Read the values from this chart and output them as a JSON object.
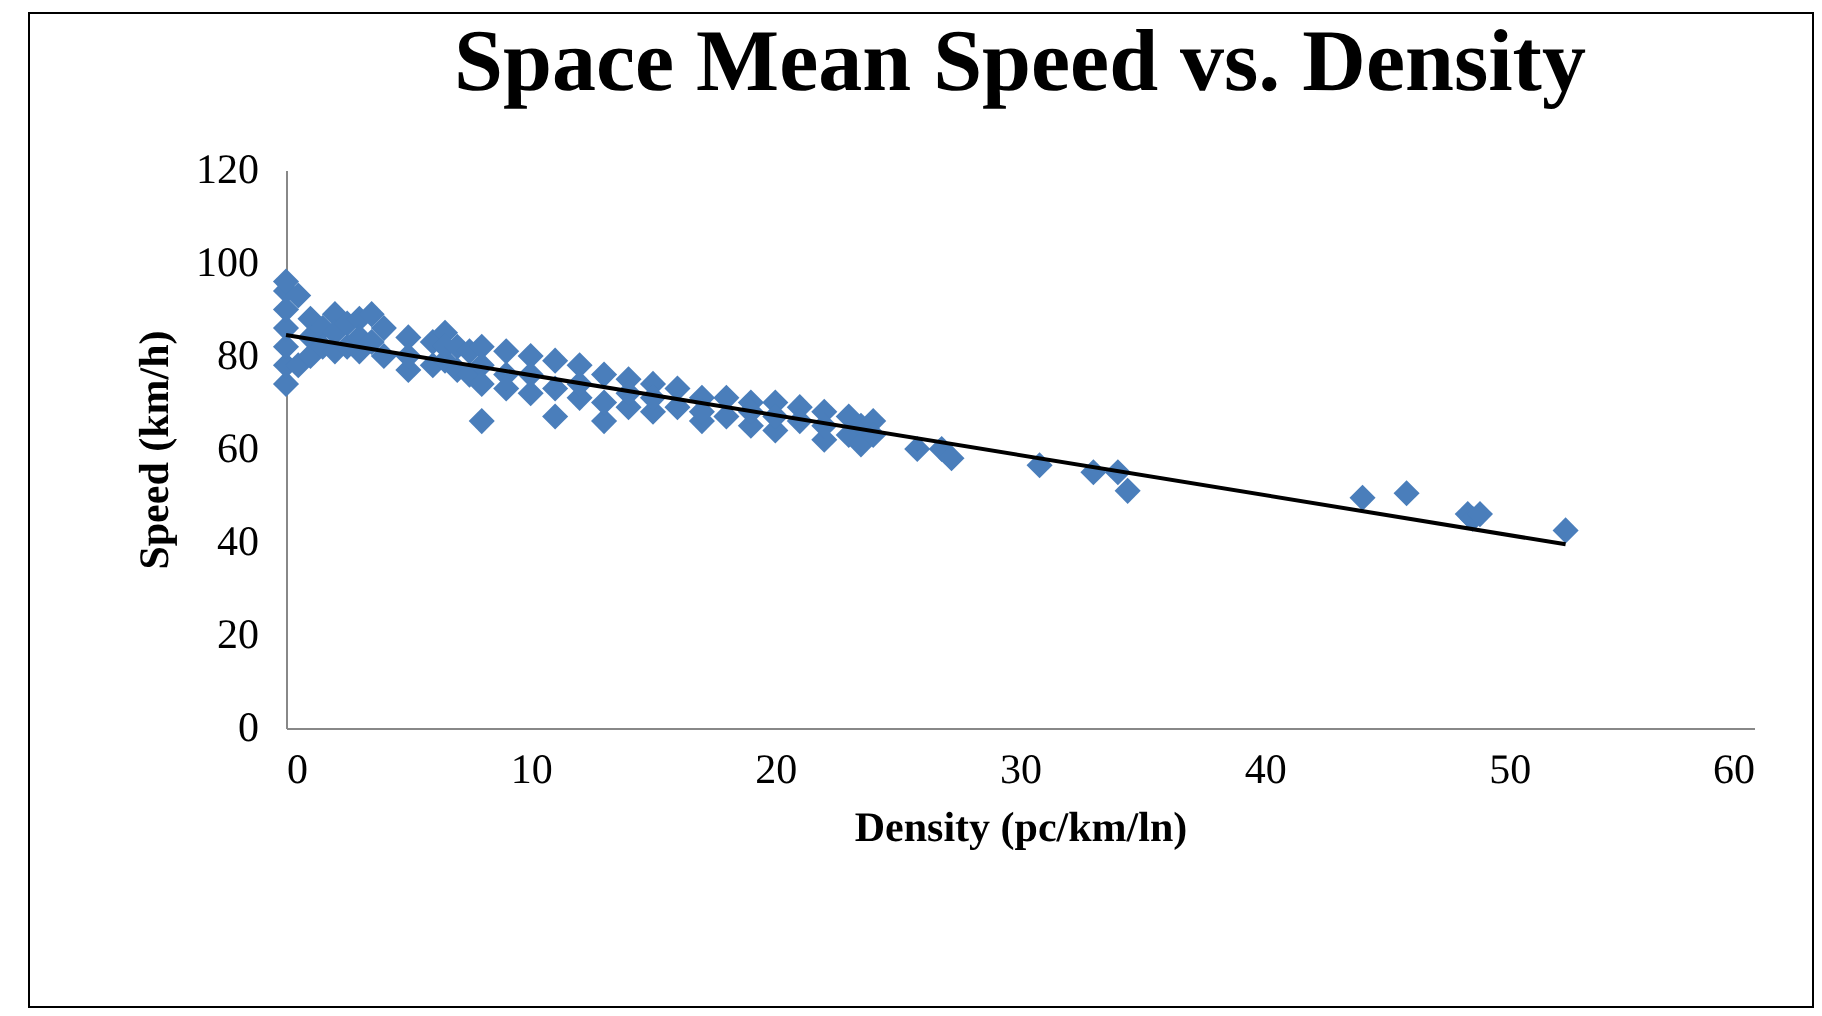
{
  "chart_data": {
    "type": "scatter",
    "title": "Space Mean Speed vs. Density",
    "xlabel": "Density (pc/km/ln)",
    "ylabel": "Speed (km/h)",
    "xlim": [
      0,
      60
    ],
    "ylim": [
      0,
      120
    ],
    "xticks": [
      0,
      10,
      20,
      30,
      40,
      50,
      60
    ],
    "yticks": [
      0,
      20,
      40,
      60,
      80,
      100,
      120
    ],
    "grid": false,
    "series": [
      {
        "marker": "diamond",
        "color": "#4a7ebb",
        "x": [
          0,
          0,
          0,
          0,
          0,
          0,
          0,
          0.5,
          0.5,
          1,
          1,
          1,
          1.5,
          1.5,
          2,
          2,
          2,
          2.5,
          2.5,
          3,
          3,
          3,
          3.5,
          3.5,
          4,
          4,
          5,
          5,
          5,
          6,
          6,
          6.5,
          6.5,
          6.5,
          7,
          7,
          7.5,
          7.5,
          8,
          8,
          8,
          8,
          9,
          9,
          9,
          10,
          10,
          10,
          11,
          11,
          11,
          12,
          12,
          12,
          13,
          13,
          13,
          14,
          14,
          14,
          15,
          15,
          15,
          16,
          16,
          17,
          17,
          17,
          18,
          18,
          19,
          19,
          19,
          20,
          20,
          20,
          21,
          21,
          22,
          22,
          22,
          23,
          23,
          23.5,
          23.5,
          24,
          24,
          25.8,
          26.8,
          27.2,
          30.8,
          33,
          34,
          34.4,
          44,
          45.8,
          48.3,
          48.5,
          48.8,
          52.3
        ],
        "values": [
          74,
          78,
          82,
          86,
          90,
          94,
          96,
          93,
          78,
          88,
          80,
          84,
          86,
          82,
          89,
          81,
          85,
          87,
          82,
          88,
          81,
          84,
          89,
          83,
          86,
          80,
          84,
          77,
          80,
          83,
          78,
          85,
          79,
          82,
          82,
          77,
          81,
          76,
          82,
          66,
          78,
          74,
          81,
          76,
          73,
          80,
          72,
          76,
          79,
          67,
          73,
          78,
          71,
          74,
          76,
          66,
          70,
          75,
          69,
          72,
          74,
          68,
          71,
          73,
          69,
          71,
          66,
          68,
          71,
          67,
          70,
          65,
          68,
          70,
          64,
          67,
          69,
          66,
          68,
          62,
          65,
          67,
          63,
          65,
          61,
          66,
          63,
          60,
          60,
          58,
          56.5,
          55,
          55,
          51,
          49.5,
          50.5,
          46,
          45,
          46,
          42.5
        ]
      },
      {
        "type": "line",
        "color": "#000000",
        "x": [
          0,
          52.3
        ],
        "values": [
          84.5,
          39.5
        ]
      }
    ]
  }
}
